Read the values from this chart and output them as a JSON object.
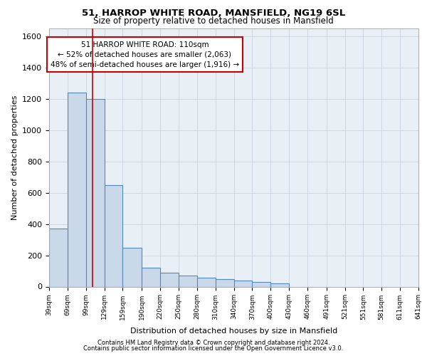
{
  "title_line1": "51, HARROP WHITE ROAD, MANSFIELD, NG19 6SL",
  "title_line2": "Size of property relative to detached houses in Mansfield",
  "xlabel": "Distribution of detached houses by size in Mansfield",
  "ylabel": "Number of detached properties",
  "footer_line1": "Contains HM Land Registry data © Crown copyright and database right 2024.",
  "footer_line2": "Contains public sector information licensed under the Open Government Licence v3.0.",
  "annotation_line1": "51 HARROP WHITE ROAD: 110sqm",
  "annotation_line2": "← 52% of detached houses are smaller (2,063)",
  "annotation_line3": "48% of semi-detached houses are larger (1,916) →",
  "bin_edges": [
    39,
    69,
    99,
    129,
    159,
    190,
    220,
    250,
    280,
    310,
    340,
    370,
    400,
    430,
    460,
    491,
    521,
    551,
    581,
    611,
    641
  ],
  "bar_heights": [
    370,
    1240,
    1200,
    650,
    250,
    120,
    90,
    72,
    55,
    48,
    38,
    28,
    22,
    0,
    0,
    0,
    0,
    0,
    0,
    0
  ],
  "bar_facecolor": "#c9d9ea",
  "bar_edgecolor": "#5588bb",
  "vline_color": "#cc0000",
  "vline_x": 110,
  "grid_color": "#c8d4e0",
  "ylim": [
    0,
    1650
  ],
  "yticks": [
    0,
    200,
    400,
    600,
    800,
    1000,
    1200,
    1400,
    1600
  ],
  "annotation_box_edgecolor": "#cc0000",
  "annotation_box_facecolor": "#ffffff",
  "bg_color": "#ffffff",
  "axes_facecolor": "#e8eff5"
}
